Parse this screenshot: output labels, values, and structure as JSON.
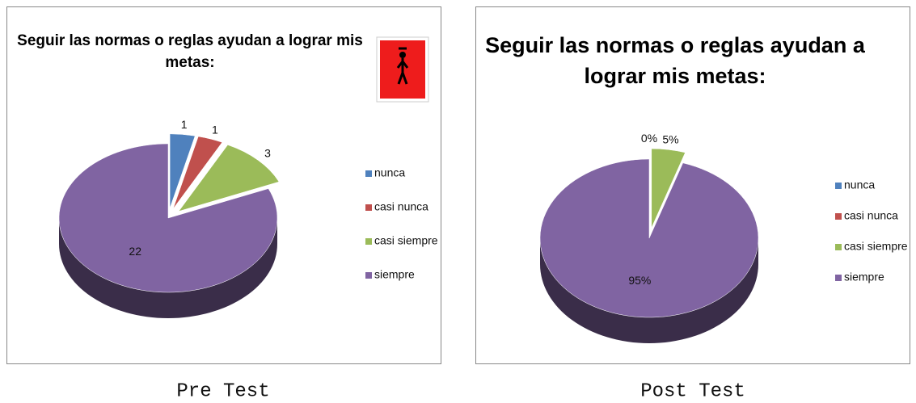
{
  "chart_data": [
    {
      "type": "pie",
      "title": "Seguir las normas o reglas ayudan a lograr mis metas:",
      "caption": "Pre Test",
      "categories": [
        "nunca",
        "casi nunca",
        "casi siempre",
        "siempre"
      ],
      "values": [
        1,
        1,
        3,
        22
      ],
      "colors": [
        "#4f81bd",
        "#c0504d",
        "#9bbb59",
        "#8064a2"
      ],
      "legend": "right"
    },
    {
      "type": "pie",
      "title": "Seguir las normas o reglas ayudan a lograr mis metas:",
      "caption": "Post Test",
      "categories": [
        "nunca",
        "casi nunca",
        "casi siempre",
        "siempre"
      ],
      "values": [
        0,
        0,
        5,
        95
      ],
      "value_labels": [
        "0%",
        null,
        "5%",
        "95%"
      ],
      "colors": [
        "#4f81bd",
        "#c0504d",
        "#9bbb59",
        "#8064a2"
      ],
      "legend": "right"
    }
  ]
}
